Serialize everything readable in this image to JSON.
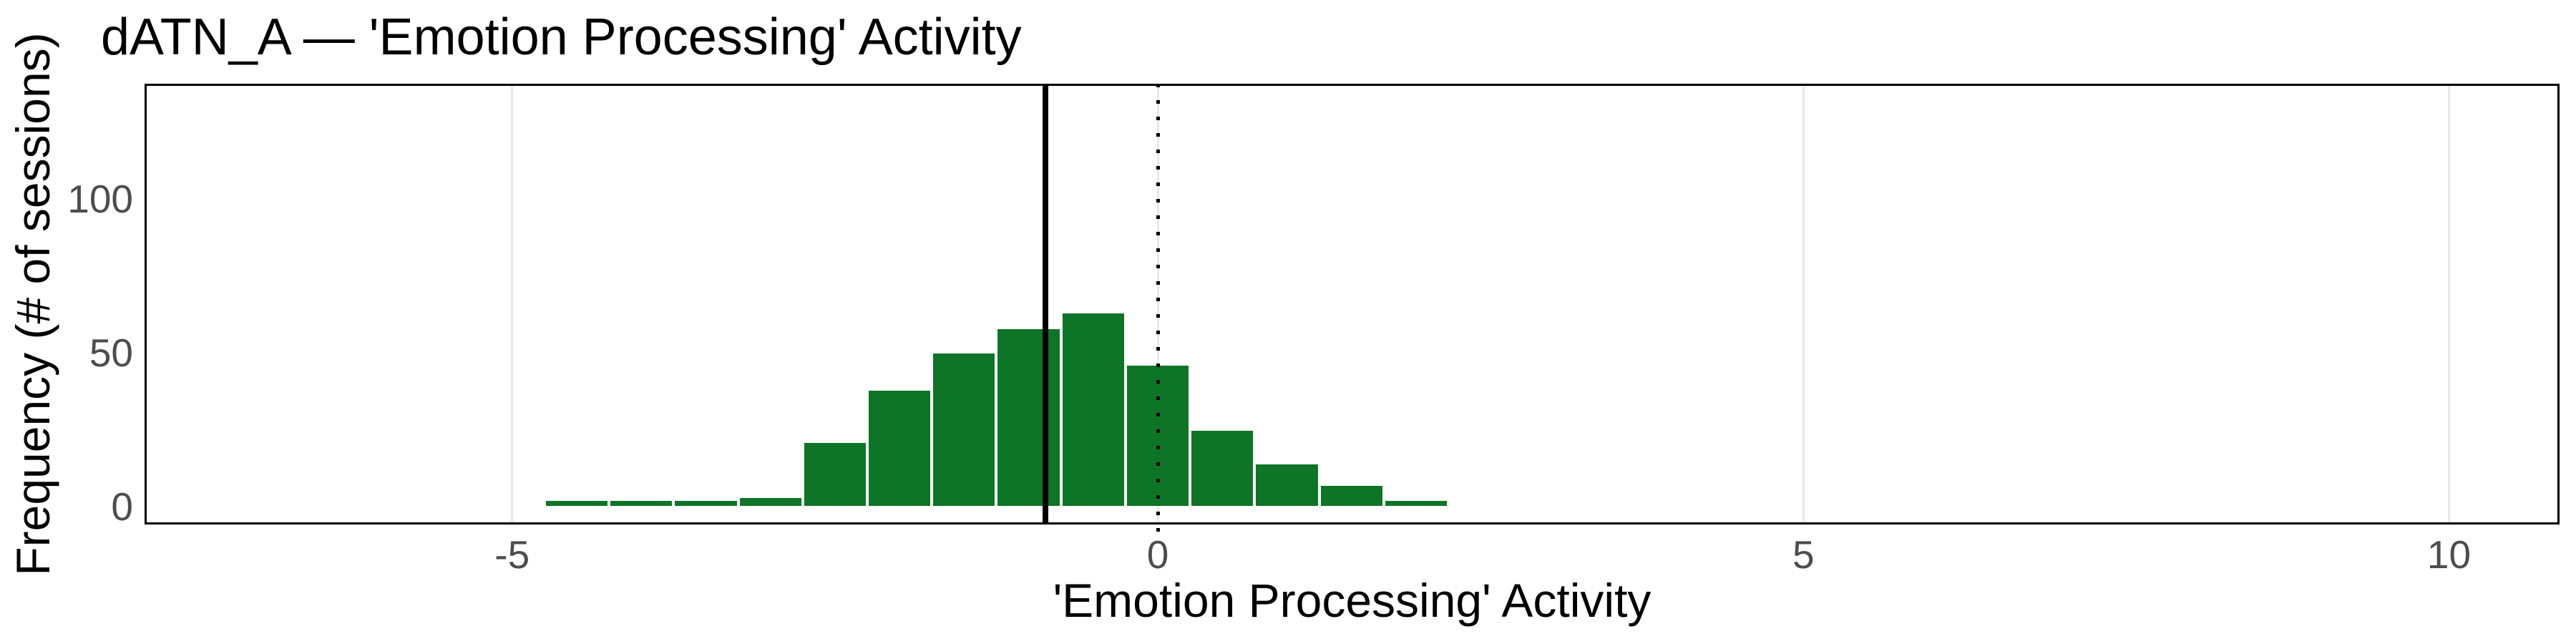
{
  "title": "dATN_A — 'Emotion Processing' Activity",
  "x_axis": {
    "label": "'Emotion Processing' Activity",
    "ticks": [
      {
        "value": -5,
        "label": "-5"
      },
      {
        "value": 0,
        "label": "0"
      },
      {
        "value": 5,
        "label": "5"
      },
      {
        "value": 10,
        "label": "10"
      }
    ]
  },
  "y_axis": {
    "label": "Frequency (# of sessions)",
    "ticks": [
      {
        "value": 0,
        "label": "0"
      },
      {
        "value": 50,
        "label": "50"
      },
      {
        "value": 100,
        "label": "100"
      }
    ]
  },
  "chart_data": {
    "type": "bar",
    "subtype": "histogram",
    "title": "dATN_A — 'Emotion Processing' Activity",
    "xlabel": "'Emotion Processing' Activity",
    "ylabel": "Frequency (# of sessions)",
    "bin_width": 0.5,
    "bin_centers": [
      -4.5,
      -4.0,
      -3.5,
      -3.0,
      -2.5,
      -2.0,
      -1.5,
      -1.0,
      -0.5,
      0.0,
      0.5,
      1.0,
      1.5,
      2.0
    ],
    "counts": [
      2,
      2,
      2,
      3,
      21,
      38,
      50,
      58,
      63,
      46,
      25,
      14,
      7,
      2
    ],
    "xlim": [
      -7.85,
      10.86
    ],
    "ylim": [
      -6,
      137
    ],
    "grid": "vertical-major-only",
    "legend": "none",
    "annotations": [
      {
        "kind": "vline",
        "style": "solid",
        "x": -0.87,
        "color": "#000000"
      },
      {
        "kind": "vline",
        "style": "dotted",
        "x": 0,
        "color": "#000000"
      }
    ],
    "colors": {
      "bar_fill": "#0e7526",
      "bar_border": "#ffffff",
      "panel_border": "#000000",
      "gridline": "#e8e8e8",
      "tick_label": "#4d4d4d",
      "text": "#000000",
      "background": "#ffffff"
    }
  }
}
